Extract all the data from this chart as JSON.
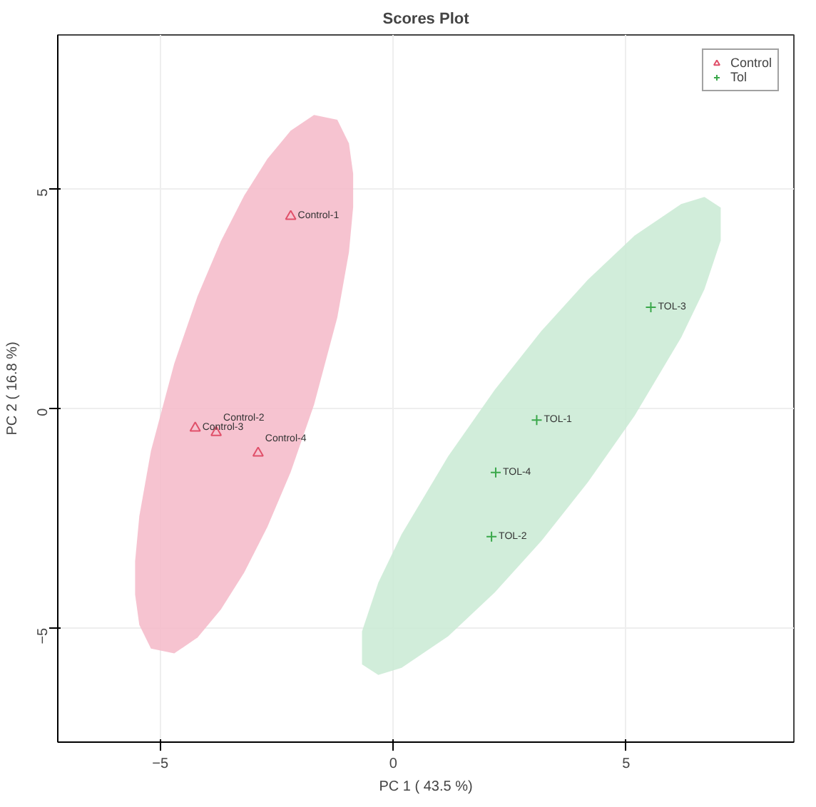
{
  "chart_data": {
    "type": "scatter",
    "title": "Scores Plot",
    "xlabel": "PC 1 ( 43.5 %)",
    "ylabel": "PC 2 ( 16.8 %)",
    "xlim": [
      -7.2,
      8.6
    ],
    "ylim": [
      -7.6,
      8.5
    ],
    "xticks": [
      -5,
      0,
      5
    ],
    "yticks": [
      -5,
      0,
      5
    ],
    "grid": true,
    "legend": "top right",
    "series": [
      {
        "type": "area",
        "color": "#f4b8c8",
        "x": [
          -5.54,
          -5.45,
          -5.2,
          -4.7,
          -4.2,
          -3.7,
          -3.2,
          -2.7,
          -2.2,
          -1.7,
          -1.2,
          -0.95,
          -0.86,
          -0.86,
          -0.95,
          -1.2,
          -1.7,
          -2.2,
          -2.7,
          -3.2,
          -3.7,
          -4.2,
          -4.7,
          -5.2,
          -5.45,
          -5.54
        ],
        "values": [
          -4.24,
          -4.93,
          -5.47,
          -5.58,
          -5.22,
          -4.58,
          -3.74,
          -2.7,
          -1.45,
          0.08,
          2.07,
          3.56,
          4.58,
          5.34,
          6.03,
          6.57,
          6.68,
          6.32,
          5.68,
          4.84,
          3.8,
          2.55,
          1.02,
          -0.97,
          -2.46,
          -3.48
        ]
      },
      {
        "type": "area",
        "color": "#c9ead3",
        "x": [
          -0.67,
          -0.32,
          0.18,
          1.18,
          2.18,
          3.18,
          4.18,
          5.18,
          6.18,
          6.68,
          7.03,
          7.03,
          6.68,
          6.18,
          5.18,
          4.18,
          3.18,
          2.18,
          1.18,
          0.18,
          -0.32,
          -0.67
        ],
        "values": [
          -5.83,
          -6.07,
          -5.91,
          -5.19,
          -4.19,
          -3.02,
          -1.68,
          -0.17,
          1.61,
          2.71,
          3.82,
          4.57,
          4.81,
          4.65,
          3.93,
          2.93,
          1.76,
          0.42,
          -1.09,
          -2.87,
          -3.97,
          -5.08
        ]
      },
      {
        "name": "Control",
        "color": "#e0506a",
        "marker": "triangle",
        "x": [
          -2.2,
          -4.25,
          -3.8,
          -2.9
        ],
        "values": [
          4.37,
          -0.45,
          -0.55,
          -1.02
        ]
      },
      {
        "name": "Tol",
        "color": "#3aa84a",
        "marker": "cross",
        "x": [
          5.53,
          3.08,
          2.2,
          2.11
        ],
        "values": [
          2.3,
          -0.27,
          -1.46,
          -2.92
        ]
      }
    ],
    "annotations": [
      {
        "text": "Control-1",
        "x": -2.2,
        "y": 4.37
      },
      {
        "text": "Control-3",
        "x": -4.25,
        "y": -0.45
      },
      {
        "text": "Control-2",
        "x": -3.8,
        "y": -0.55
      },
      {
        "text": "Control-4",
        "x": -2.9,
        "y": -1.02
      },
      {
        "text": "TOL-3",
        "x": 5.53,
        "y": 2.3
      },
      {
        "text": "TOL-1",
        "x": 3.08,
        "y": -0.27
      },
      {
        "text": "TOL-4",
        "x": 2.2,
        "y": -1.46
      },
      {
        "text": "TOL-2",
        "x": 2.11,
        "y": -2.92
      }
    ]
  }
}
